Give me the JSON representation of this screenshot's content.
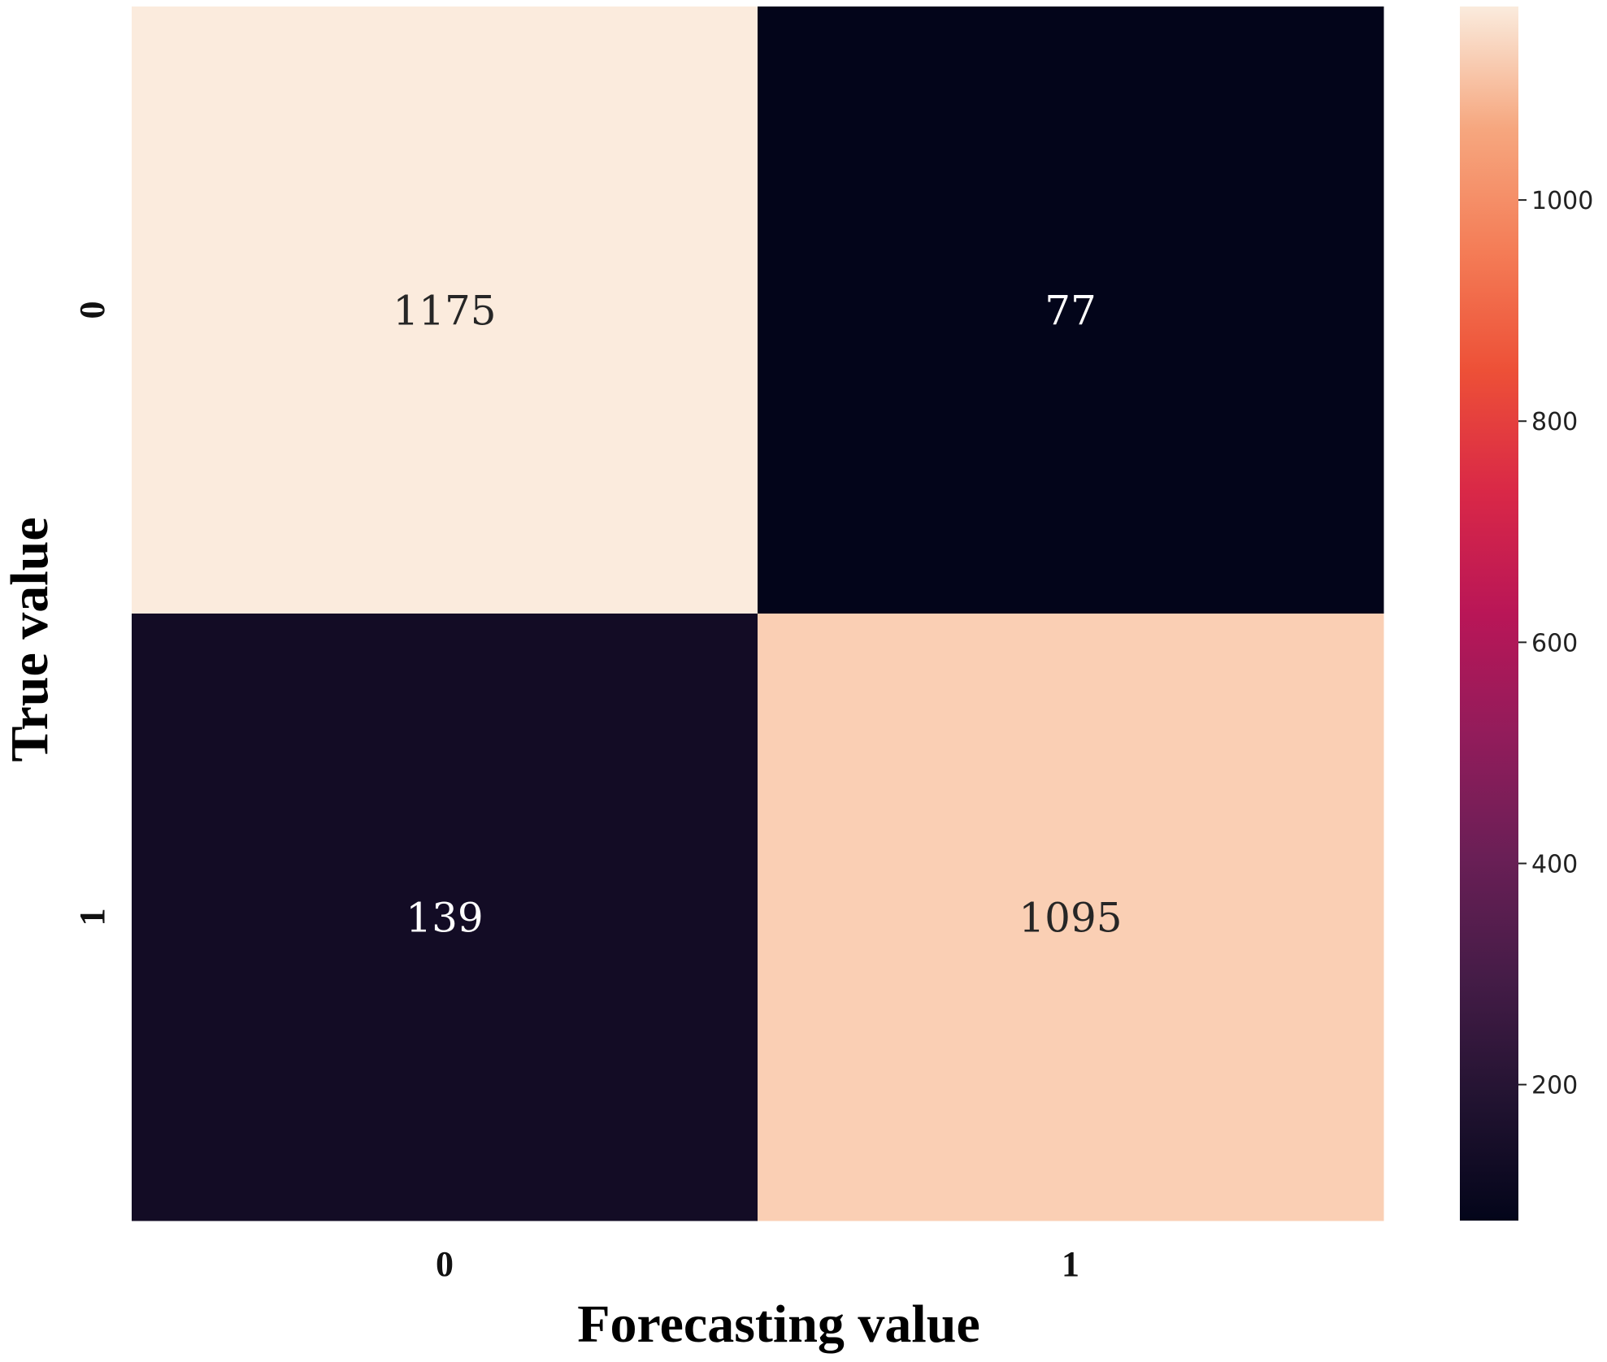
{
  "chart_data": {
    "type": "heatmap",
    "title": "",
    "xlabel": "Forecasting value",
    "ylabel": "True value",
    "x_categories": [
      "0",
      "1"
    ],
    "y_categories": [
      "0",
      "1"
    ],
    "matrix": [
      [
        1175,
        77
      ],
      [
        139,
        1095
      ]
    ],
    "colormap": "rocket",
    "colors": {
      "1175": "#fbebdd",
      "77": "#03051a",
      "139": "#130c25",
      "1095": "#facfb4"
    },
    "annotation_colors": {
      "light": "#ffffff",
      "dark": "#262626"
    },
    "colorbar": {
      "range": [
        77,
        1175
      ],
      "ticks": [
        200,
        400,
        600,
        800,
        1000
      ],
      "tick_labels": [
        "200",
        "400",
        "600",
        "800",
        "1000"
      ]
    },
    "grid": false,
    "legend": "colorbar-right"
  }
}
